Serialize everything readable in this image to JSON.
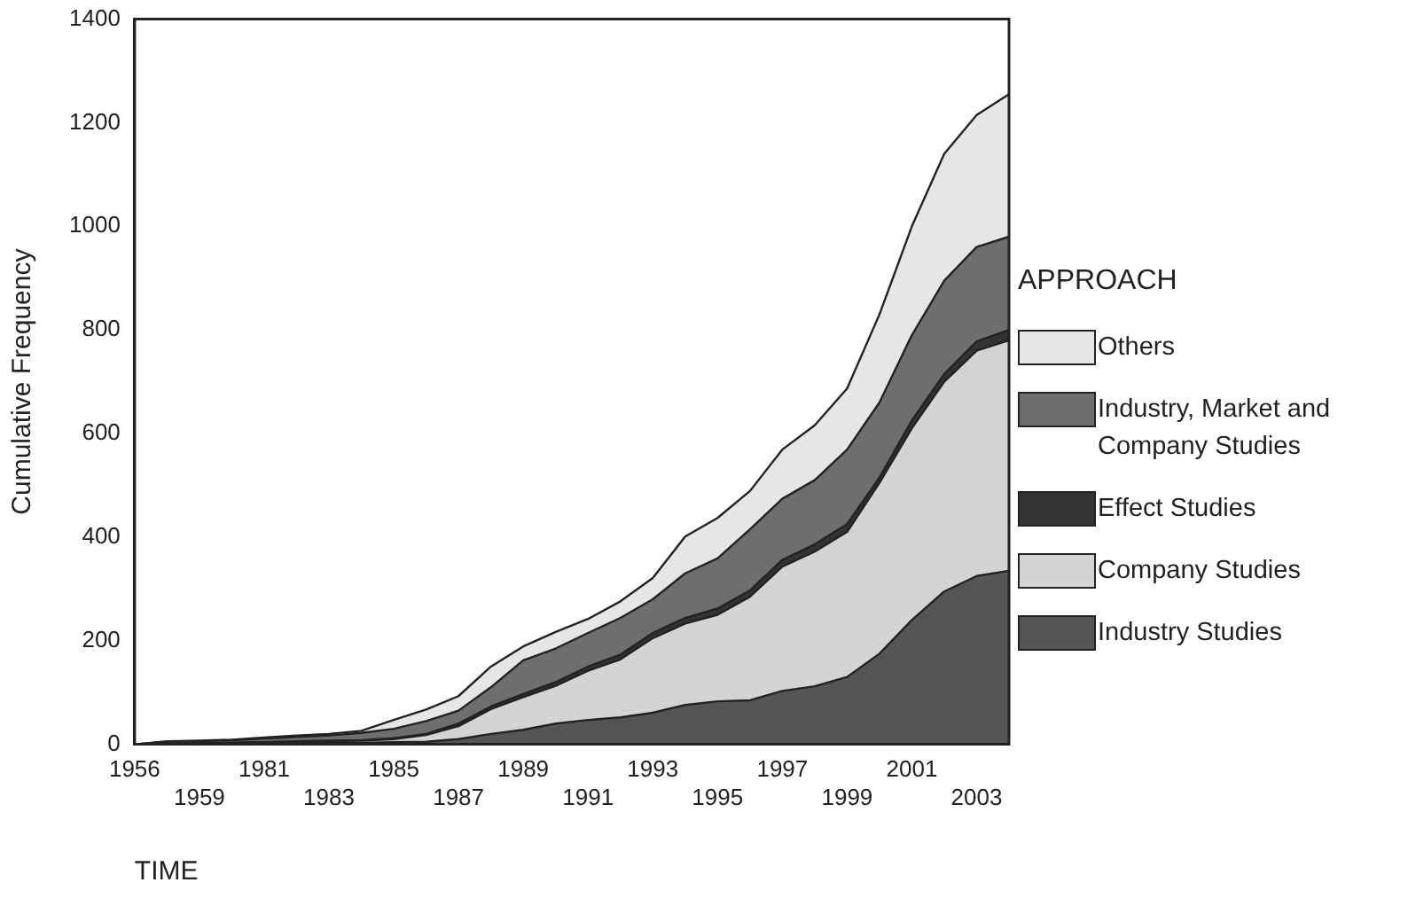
{
  "chart_data": {
    "type": "area",
    "stacked": true,
    "xlabel": "TIME",
    "ylabel": "Cumulative Frequency",
    "legend_title": "APPROACH",
    "legend": "right",
    "grid": false,
    "categories": [
      "1956",
      null,
      "1959",
      null,
      "1981",
      null,
      "1983",
      null,
      "1985",
      null,
      "1987",
      null,
      "1989",
      null,
      "1991",
      null,
      "1993",
      null,
      "1995",
      null,
      "1997",
      null,
      "1999",
      null,
      "2001",
      null,
      "2003",
      null
    ],
    "ylim": [
      0,
      1400
    ],
    "yticks": [
      0,
      200,
      400,
      600,
      800,
      1000,
      1200,
      1400
    ],
    "series": [
      {
        "name": "Industry Studies",
        "color": "#555555",
        "values": [
          0,
          0,
          1,
          1,
          2,
          2,
          3,
          3,
          4,
          5,
          10,
          20,
          28,
          40,
          47,
          52,
          61,
          76,
          83,
          85,
          103,
          112,
          130,
          175,
          240,
          295,
          325,
          335
        ]
      },
      {
        "name": "Company Studies",
        "color": "#d4d4d4",
        "values": [
          0,
          1,
          1,
          2,
          2,
          3,
          3,
          4,
          6,
          13,
          25,
          48,
          63,
          73,
          95,
          112,
          144,
          157,
          167,
          200,
          240,
          260,
          280,
          330,
          370,
          405,
          435,
          445
        ]
      },
      {
        "name": "Effect Studies",
        "color": "#333333",
        "values": [
          0,
          0,
          0,
          0,
          0,
          1,
          1,
          1,
          2,
          2,
          5,
          5,
          6,
          7,
          8,
          9,
          10,
          11,
          12,
          12,
          13,
          14,
          15,
          10,
          15,
          15,
          18,
          20
        ]
      },
      {
        "name": "Industry, Market and Company Studies",
        "color": "#6e6e6e",
        "values": [
          0,
          4,
          4,
          5,
          7,
          8,
          10,
          14,
          18,
          25,
          25,
          37,
          65,
          65,
          65,
          71,
          65,
          86,
          97,
          118,
          118,
          124,
          144,
          145,
          165,
          180,
          182,
          180
        ]
      },
      {
        "name": "Others",
        "color": "#e6e6e6",
        "values": [
          0,
          1,
          1,
          1,
          2,
          3,
          3,
          4,
          17,
          22,
          28,
          40,
          27,
          32,
          27,
          32,
          41,
          71,
          78,
          74,
          95,
          106,
          118,
          170,
          210,
          245,
          255,
          275
        ]
      }
    ]
  }
}
